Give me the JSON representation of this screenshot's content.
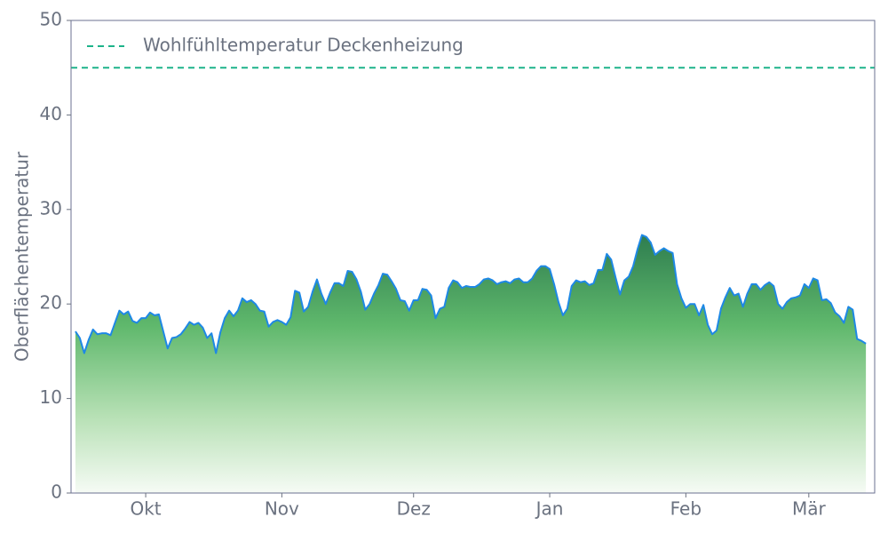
{
  "chart_data": {
    "type": "area",
    "ylabel": "Oberflächentemperatur",
    "x": [
      -16,
      -15,
      -14,
      -13,
      -12,
      -11,
      -10,
      -9,
      -8,
      -7,
      -6,
      -5,
      -4,
      -3,
      -2,
      -1,
      0,
      1,
      2,
      3,
      4,
      5,
      6,
      7,
      8,
      9,
      10,
      11,
      12,
      13,
      14,
      15,
      16,
      17,
      18,
      19,
      20,
      21,
      22,
      23,
      24,
      25,
      26,
      27,
      28,
      29,
      30,
      31,
      32,
      33,
      34,
      35,
      36,
      37,
      38,
      39,
      40,
      41,
      42,
      43,
      44,
      45,
      46,
      47,
      48,
      49,
      50,
      51,
      52,
      53,
      54,
      55,
      56,
      57,
      58,
      59,
      60,
      61,
      62,
      63,
      64,
      65,
      66,
      67,
      68,
      69,
      70,
      71,
      72,
      73,
      74,
      75,
      76,
      77,
      78,
      79,
      80,
      81,
      82,
      83,
      84,
      85,
      86,
      87,
      88,
      89,
      90,
      91,
      92,
      93,
      94,
      95,
      96,
      97,
      98,
      99,
      100,
      101,
      102,
      103,
      104,
      105,
      106,
      107,
      108,
      109,
      110,
      111,
      112,
      113,
      114,
      115,
      116,
      117,
      118,
      119,
      120,
      121,
      122,
      123,
      124,
      125,
      126,
      127,
      128,
      129,
      130,
      131,
      132,
      133,
      134,
      135,
      136,
      137,
      138,
      139,
      140,
      141,
      142,
      143,
      144,
      145,
      146,
      147,
      148,
      149,
      150,
      151,
      152,
      153,
      154,
      155,
      156,
      157,
      158,
      159,
      160,
      161,
      162,
      163,
      164
    ],
    "series": [
      {
        "color": "#1e88e5",
        "values": [
          17.1,
          16.4,
          14.8,
          16.2,
          17.3,
          16.8,
          16.9,
          16.9,
          16.7,
          18.0,
          19.3,
          18.9,
          19.2,
          18.2,
          18.0,
          18.5,
          18.5,
          19.1,
          18.8,
          18.9,
          17.1,
          15.3,
          16.4,
          16.5,
          16.8,
          17.4,
          18.1,
          17.8,
          18.0,
          17.5,
          16.4,
          16.9,
          14.8,
          17.0,
          18.5,
          19.3,
          18.7,
          19.3,
          20.6,
          20.2,
          20.4,
          20.0,
          19.3,
          19.2,
          17.6,
          18.1,
          18.3,
          18.1,
          17.8,
          18.6,
          21.4,
          21.2,
          19.2,
          19.7,
          21.3,
          22.6,
          21.1,
          20.0,
          21.2,
          22.2,
          22.2,
          21.9,
          23.5,
          23.4,
          22.6,
          21.3,
          19.4,
          20.0,
          21.1,
          22.0,
          23.2,
          23.1,
          22.4,
          21.6,
          20.4,
          20.3,
          19.3,
          20.4,
          20.4,
          21.6,
          21.5,
          20.9,
          18.5,
          19.5,
          19.7,
          21.7,
          22.5,
          22.3,
          21.7,
          21.9,
          21.8,
          21.8,
          22.1,
          22.6,
          22.7,
          22.5,
          22.1,
          22.3,
          22.4,
          22.2,
          22.6,
          22.7,
          22.3,
          22.3,
          22.7,
          23.5,
          24.0,
          24.0,
          23.7,
          22.1,
          20.2,
          18.8,
          19.5,
          21.9,
          22.5,
          22.3,
          22.4,
          22.0,
          22.2,
          23.6,
          23.6,
          25.3,
          24.7,
          22.8,
          21.0,
          22.5,
          22.9,
          24.0,
          25.8,
          27.3,
          27.1,
          26.5,
          25.2,
          25.6,
          25.9,
          25.6,
          25.4,
          22.1,
          20.6,
          19.6,
          20.0,
          20.0,
          18.8,
          19.9,
          17.8,
          16.8,
          17.2,
          19.5,
          20.7,
          21.7,
          20.9,
          21.1,
          19.7,
          21.1,
          22.1,
          22.1,
          21.5,
          22.0,
          22.3,
          21.9,
          20.0,
          19.5,
          20.2,
          20.6,
          20.7,
          20.9,
          22.1,
          21.7,
          22.7,
          22.5,
          20.4,
          20.5,
          20.1,
          19.1,
          18.7,
          18.0,
          19.7,
          19.4,
          16.3,
          16.1,
          15.8
        ]
      }
    ],
    "reference_lines": [
      {
        "value": 45,
        "label": "Wohlfühltemperatur Deckenheizung",
        "color": "#1db38a",
        "style": "dashed"
      }
    ],
    "xlim": [
      -17,
      166
    ],
    "xticks": [
      {
        "value": 0,
        "label": "Okt"
      },
      {
        "value": 31,
        "label": "Nov"
      },
      {
        "value": 61,
        "label": "Dez"
      },
      {
        "value": 92,
        "label": "Jan"
      },
      {
        "value": 123,
        "label": "Feb"
      },
      {
        "value": 151,
        "label": "Mär"
      }
    ],
    "ylim": [
      0,
      50
    ],
    "yticks": [
      0,
      10,
      20,
      30,
      40,
      50
    ],
    "grid": false,
    "legend": "upper left"
  }
}
